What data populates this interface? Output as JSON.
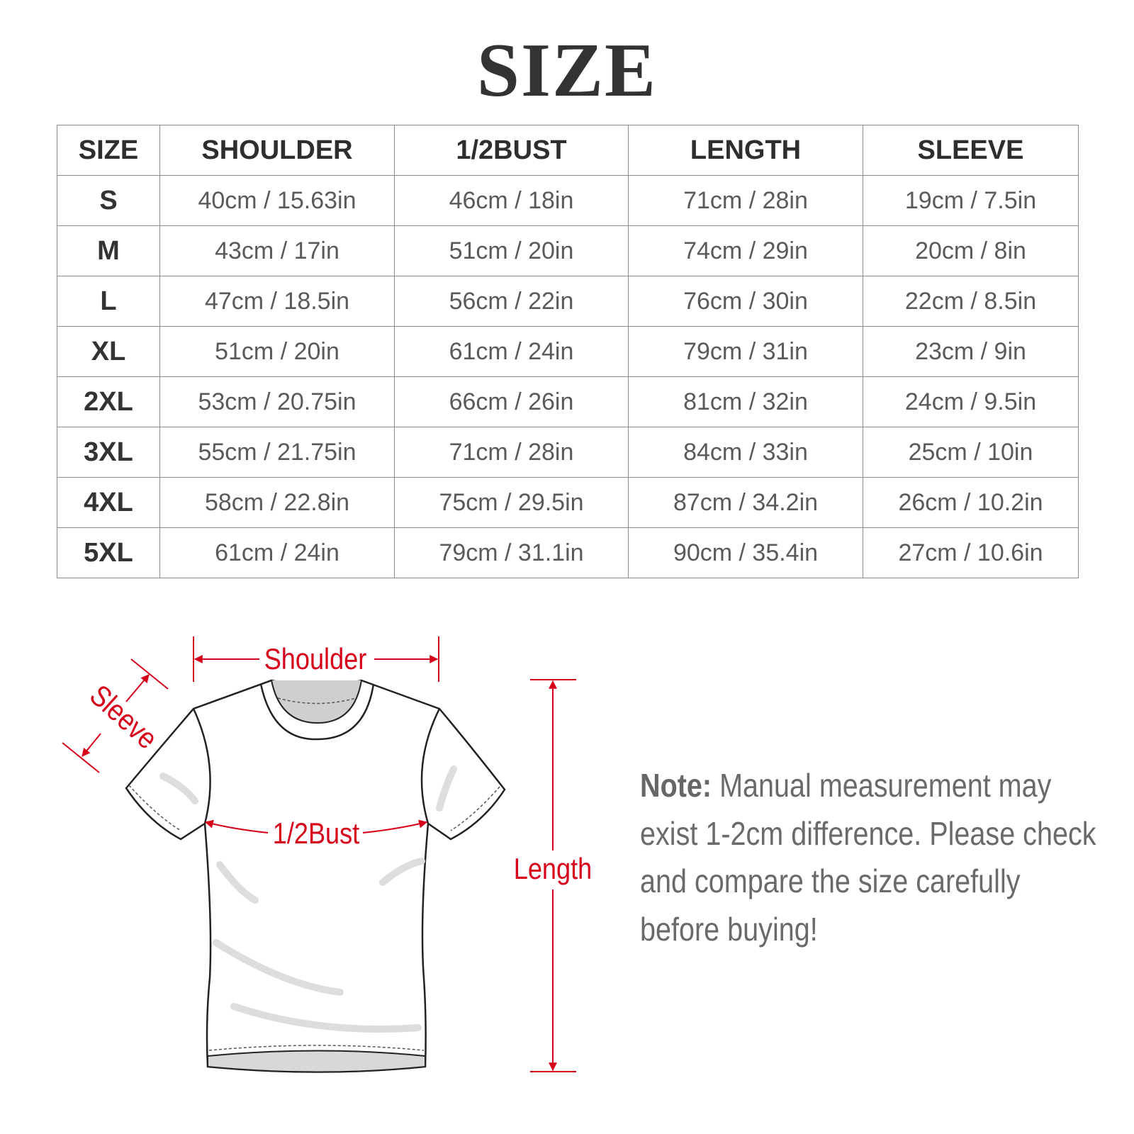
{
  "title": "SIZE",
  "table": {
    "headers": [
      "SIZE",
      "SHOULDER",
      "1/2BUST",
      "LENGTH",
      "SLEEVE"
    ],
    "rows": [
      [
        "S",
        "40cm / 15.63in",
        "46cm / 18in",
        "71cm / 28in",
        "19cm / 7.5in"
      ],
      [
        "M",
        "43cm / 17in",
        "51cm / 20in",
        "74cm / 29in",
        "20cm / 8in"
      ],
      [
        "L",
        "47cm / 18.5in",
        "56cm / 22in",
        "76cm / 30in",
        "22cm / 8.5in"
      ],
      [
        "XL",
        "51cm / 20in",
        "61cm / 24in",
        "79cm / 31in",
        "23cm / 9in"
      ],
      [
        "2XL",
        "53cm / 20.75in",
        "66cm / 26in",
        "81cm / 32in",
        "24cm / 9.5in"
      ],
      [
        "3XL",
        "55cm / 21.75in",
        "71cm / 28in",
        "84cm / 33in",
        "25cm / 10in"
      ],
      [
        "4XL",
        "58cm / 22.8in",
        "75cm / 29.5in",
        "87cm / 34.2in",
        "26cm / 10.2in"
      ],
      [
        "5XL",
        "61cm / 24in",
        "79cm / 31.1in",
        "90cm / 35.4in",
        "27cm / 10.6in"
      ]
    ]
  },
  "diagram": {
    "shoulder_label": "Shoulder",
    "sleeve_label": "Sleeve",
    "bust_label": "1/2Bust",
    "length_label": "Length",
    "accent_color": "#d7001a"
  },
  "note": {
    "label": "Note:",
    "text": " Manual measurement may exist 1-2cm difference. Please check and compare the size carefully before buying!"
  }
}
